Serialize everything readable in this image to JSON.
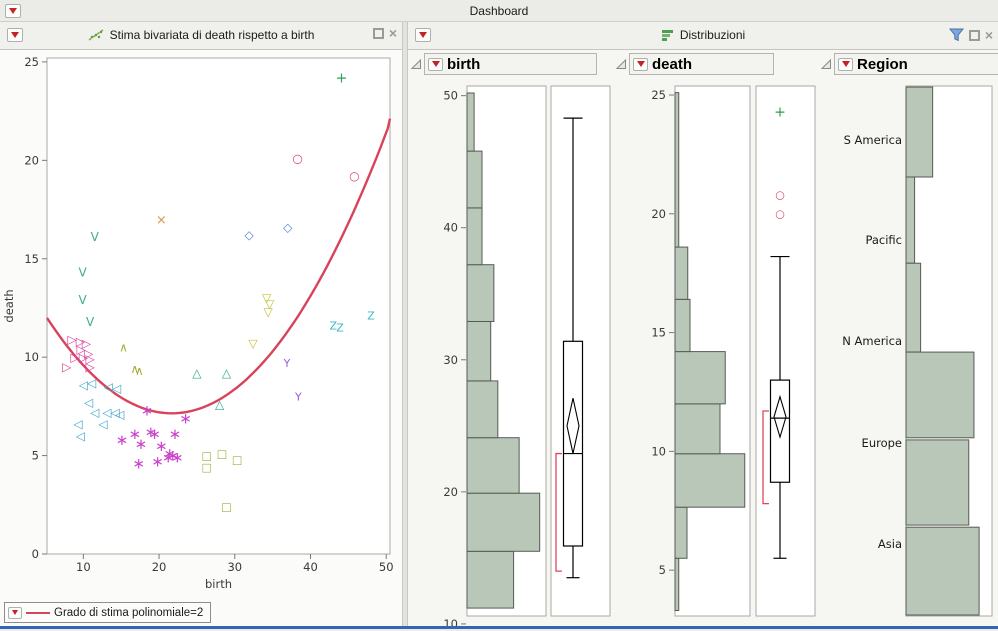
{
  "window": {
    "title": "Dashboard"
  },
  "left_panel": {
    "title": "Stima bivariata di death rispetto a birth",
    "legend_label": "Grado di stima polinomiale=2",
    "icon": "bivariate-fit-icon",
    "controls": {
      "maximize": "maximize",
      "close": "close"
    }
  },
  "right_panel": {
    "title": "Distribuzioni",
    "icon": "distribution-icon",
    "controls": {
      "filter": "data-filter",
      "maximize": "maximize",
      "close": "close"
    }
  },
  "colors": {
    "accent_red": "#c32525",
    "curve_red": "#d8435b",
    "hist_fill": "#b9c7b8",
    "hist_stroke": "#565b54",
    "bracket_red": "#e0455a",
    "frame_gray": "#a9a9a3",
    "tick_text": "#3a3a3a"
  },
  "chart_data": [
    {
      "type": "scatter",
      "title": "Stima bivariata di death rispetto a birth",
      "xlabel": "birth",
      "ylabel": "death",
      "xlim": [
        5.2,
        50.5
      ],
      "ylim": [
        0,
        25.2
      ],
      "xticks": [
        10,
        20,
        30,
        40,
        50
      ],
      "yticks": [
        0,
        5,
        10,
        15,
        20,
        25
      ],
      "fit": {
        "label": "Grado di stima polinomiale=2",
        "color": "#d8435b",
        "vertex": [
          21.7,
          7.15
        ],
        "a": 0.0178
      },
      "series": [
        {
          "name": "plus-green",
          "glyph": "+",
          "color": "#2e9e53",
          "size": 14,
          "points": [
            [
              44.1,
              24.2
            ]
          ]
        },
        {
          "name": "circle-red",
          "glyph": "○",
          "color": "#d84b66",
          "size": 12,
          "points": [
            [
              38.3,
              20.1
            ],
            [
              45.8,
              19.2
            ]
          ]
        },
        {
          "name": "cross-orange",
          "glyph": "×",
          "color": "#d89a4a",
          "size": 13,
          "points": [
            [
              20.3,
              17.0
            ]
          ]
        },
        {
          "name": "diamond-blue",
          "glyph": "◇",
          "color": "#4f7fd4",
          "size": 12,
          "points": [
            [
              31.9,
              16.2
            ],
            [
              37.0,
              16.6
            ]
          ]
        },
        {
          "name": "letter-v-green",
          "glyph": "V",
          "color": "#3fae7c",
          "size": 12,
          "points": [
            [
              11.5,
              16.1
            ],
            [
              9.9,
              14.3
            ],
            [
              9.9,
              12.9
            ],
            [
              10.9,
              11.8
            ]
          ]
        },
        {
          "name": "triangle-down-yellow",
          "glyph": "▽",
          "color": "#c2c23a",
          "size": 12,
          "points": [
            [
              34.2,
              13.0
            ],
            [
              34.6,
              12.7
            ],
            [
              34.4,
              12.3
            ],
            [
              32.4,
              10.7
            ]
          ]
        },
        {
          "name": "letter-z-cyan",
          "glyph": "Z",
          "color": "#38b8c4",
          "size": 11,
          "points": [
            [
              48.0,
              12.1
            ],
            [
              43.0,
              11.6
            ],
            [
              43.9,
              11.5
            ]
          ]
        },
        {
          "name": "triangle-right-pink",
          "glyph": "▷",
          "color": "#d8429e",
          "size": 12,
          "points": [
            [
              8.5,
              10.9
            ],
            [
              9.6,
              10.8
            ],
            [
              10.4,
              10.7
            ],
            [
              9.7,
              10.4
            ],
            [
              10.7,
              10.2
            ],
            [
              8.9,
              10.0
            ],
            [
              10.0,
              10.0
            ],
            [
              10.9,
              9.9
            ],
            [
              7.8,
              9.5
            ],
            [
              10.9,
              9.5
            ]
          ]
        },
        {
          "name": "caret-olive",
          "glyph": "∧",
          "color": "#a8ad3b",
          "size": 12,
          "points": [
            [
              15.3,
              10.5
            ],
            [
              16.8,
              9.4
            ],
            [
              17.4,
              9.3
            ]
          ]
        },
        {
          "name": "triangle-up-teal",
          "glyph": "△",
          "color": "#2fa98c",
          "size": 12,
          "points": [
            [
              25.0,
              9.2
            ],
            [
              28.9,
              9.2
            ],
            [
              28.0,
              7.6
            ]
          ]
        },
        {
          "name": "letter-y-purple",
          "glyph": "Y",
          "color": "#9e5ad8",
          "size": 11,
          "points": [
            [
              36.9,
              9.7
            ],
            [
              38.4,
              8.0
            ]
          ]
        },
        {
          "name": "triangle-left-cyan",
          "glyph": "◁",
          "color": "#45a8cf",
          "size": 12,
          "points": [
            [
              10.0,
              8.6
            ],
            [
              11.1,
              8.7
            ],
            [
              13.3,
              8.5
            ],
            [
              14.4,
              8.4
            ],
            [
              10.7,
              7.7
            ],
            [
              11.5,
              7.2
            ],
            [
              13.1,
              7.2
            ],
            [
              14.2,
              7.2
            ],
            [
              14.8,
              7.1
            ],
            [
              9.3,
              6.6
            ],
            [
              12.6,
              6.6
            ],
            [
              9.6,
              6.0
            ]
          ]
        },
        {
          "name": "asterisk-magenta",
          "glyph": "∗",
          "color": "#cc44cc",
          "size": 15,
          "points": [
            [
              18.4,
              7.3
            ],
            [
              23.5,
              6.9
            ],
            [
              16.8,
              6.1
            ],
            [
              18.9,
              6.2
            ],
            [
              19.4,
              6.1
            ],
            [
              22.1,
              6.1
            ],
            [
              15.1,
              5.8
            ],
            [
              17.6,
              5.6
            ],
            [
              20.3,
              5.5
            ],
            [
              21.4,
              5.1
            ],
            [
              21.8,
              5.0
            ],
            [
              22.4,
              4.9
            ],
            [
              21.2,
              4.9
            ],
            [
              19.8,
              4.7
            ],
            [
              17.3,
              4.6
            ]
          ]
        },
        {
          "name": "square-olive",
          "glyph": "□",
          "color": "#a2af3e",
          "size": 11,
          "points": [
            [
              26.3,
              5.0
            ],
            [
              28.3,
              5.1
            ],
            [
              30.3,
              4.8
            ],
            [
              26.3,
              4.4
            ],
            [
              28.9,
              2.4
            ]
          ]
        }
      ]
    },
    {
      "type": "histogram",
      "variable": "birth",
      "orientation": "vertical",
      "axis_range": [
        10.6,
        50.73
      ],
      "ticks": [
        50,
        40,
        30,
        20,
        10
      ],
      "bins": [
        {
          "from": 11.2,
          "to": 15.5,
          "frac": 0.59
        },
        {
          "from": 15.5,
          "to": 19.9,
          "frac": 0.92
        },
        {
          "from": 19.9,
          "to": 24.1,
          "frac": 0.66
        },
        {
          "from": 24.1,
          "to": 28.4,
          "frac": 0.39
        },
        {
          "from": 28.4,
          "to": 32.9,
          "frac": 0.3
        },
        {
          "from": 32.9,
          "to": 37.2,
          "frac": 0.34
        },
        {
          "from": 37.2,
          "to": 41.5,
          "frac": 0.19
        },
        {
          "from": 41.5,
          "to": 45.8,
          "frac": 0.19
        },
        {
          "from": 45.8,
          "to": 50.2,
          "frac": 0.09
        }
      ],
      "boxplot": {
        "whisker_low": 13.5,
        "box_low": 15.9,
        "median": 22.9,
        "box_high": 31.4,
        "whisker_high": 48.3,
        "mean_diamond": [
          22.9,
          27.1
        ],
        "shortest_half": [
          14.0,
          22.9
        ],
        "outliers": []
      }
    },
    {
      "type": "histogram",
      "variable": "death",
      "orientation": "vertical",
      "axis_range": [
        3.07,
        25.38
      ],
      "ticks": [
        25,
        20,
        15,
        10,
        5
      ],
      "bins": [
        {
          "from": 3.3,
          "to": 5.5,
          "frac": 0.05
        },
        {
          "from": 5.5,
          "to": 7.65,
          "frac": 0.16
        },
        {
          "from": 7.65,
          "to": 9.9,
          "frac": 0.93
        },
        {
          "from": 9.9,
          "to": 12.0,
          "frac": 0.6
        },
        {
          "from": 12.0,
          "to": 14.2,
          "frac": 0.67
        },
        {
          "from": 14.2,
          "to": 16.4,
          "frac": 0.2
        },
        {
          "from": 16.4,
          "to": 18.6,
          "frac": 0.17
        },
        {
          "from": 18.6,
          "to": 25.1,
          "frac": 0.05
        }
      ],
      "boxplot": {
        "whisker_low": 5.5,
        "box_low": 8.7,
        "median": 11.4,
        "box_high": 13.0,
        "whisker_high": 18.2,
        "mean_diamond": [
          10.6,
          12.3
        ],
        "shortest_half": [
          7.8,
          11.7
        ],
        "outliers": [
          {
            "value": 24.3,
            "glyph": "+",
            "color": "#2e9e53",
            "size": 14
          },
          {
            "value": 20.8,
            "glyph": "○",
            "color": "#d84b66",
            "size": 11
          },
          {
            "value": 20.0,
            "glyph": "○",
            "color": "#d84b66",
            "size": 11
          }
        ]
      }
    },
    {
      "type": "bar",
      "variable": "Region",
      "orientation": "horizontal",
      "bars": [
        {
          "label": "S America",
          "y0": 0.002,
          "y1": 0.172,
          "frac": 0.31,
          "labelY": 0.102
        },
        {
          "label": "Pacific",
          "y0": 0.172,
          "y1": 0.335,
          "frac": 0.1,
          "labelY": 0.291
        },
        {
          "label": "N America",
          "y0": 0.335,
          "y1": 0.503,
          "frac": 0.17,
          "labelY": 0.482
        },
        {
          "label": "",
          "y0": 0.503,
          "y1": 0.665,
          "frac": 0.79,
          "labelY": null
        },
        {
          "label": "Europe",
          "y0": 0.669,
          "y1": 0.83,
          "frac": 0.73,
          "labelY": 0.675
        },
        {
          "label": "Asia",
          "y0": 0.834,
          "y1": 1.0,
          "frac": 0.85,
          "labelY": 0.866
        }
      ]
    }
  ]
}
